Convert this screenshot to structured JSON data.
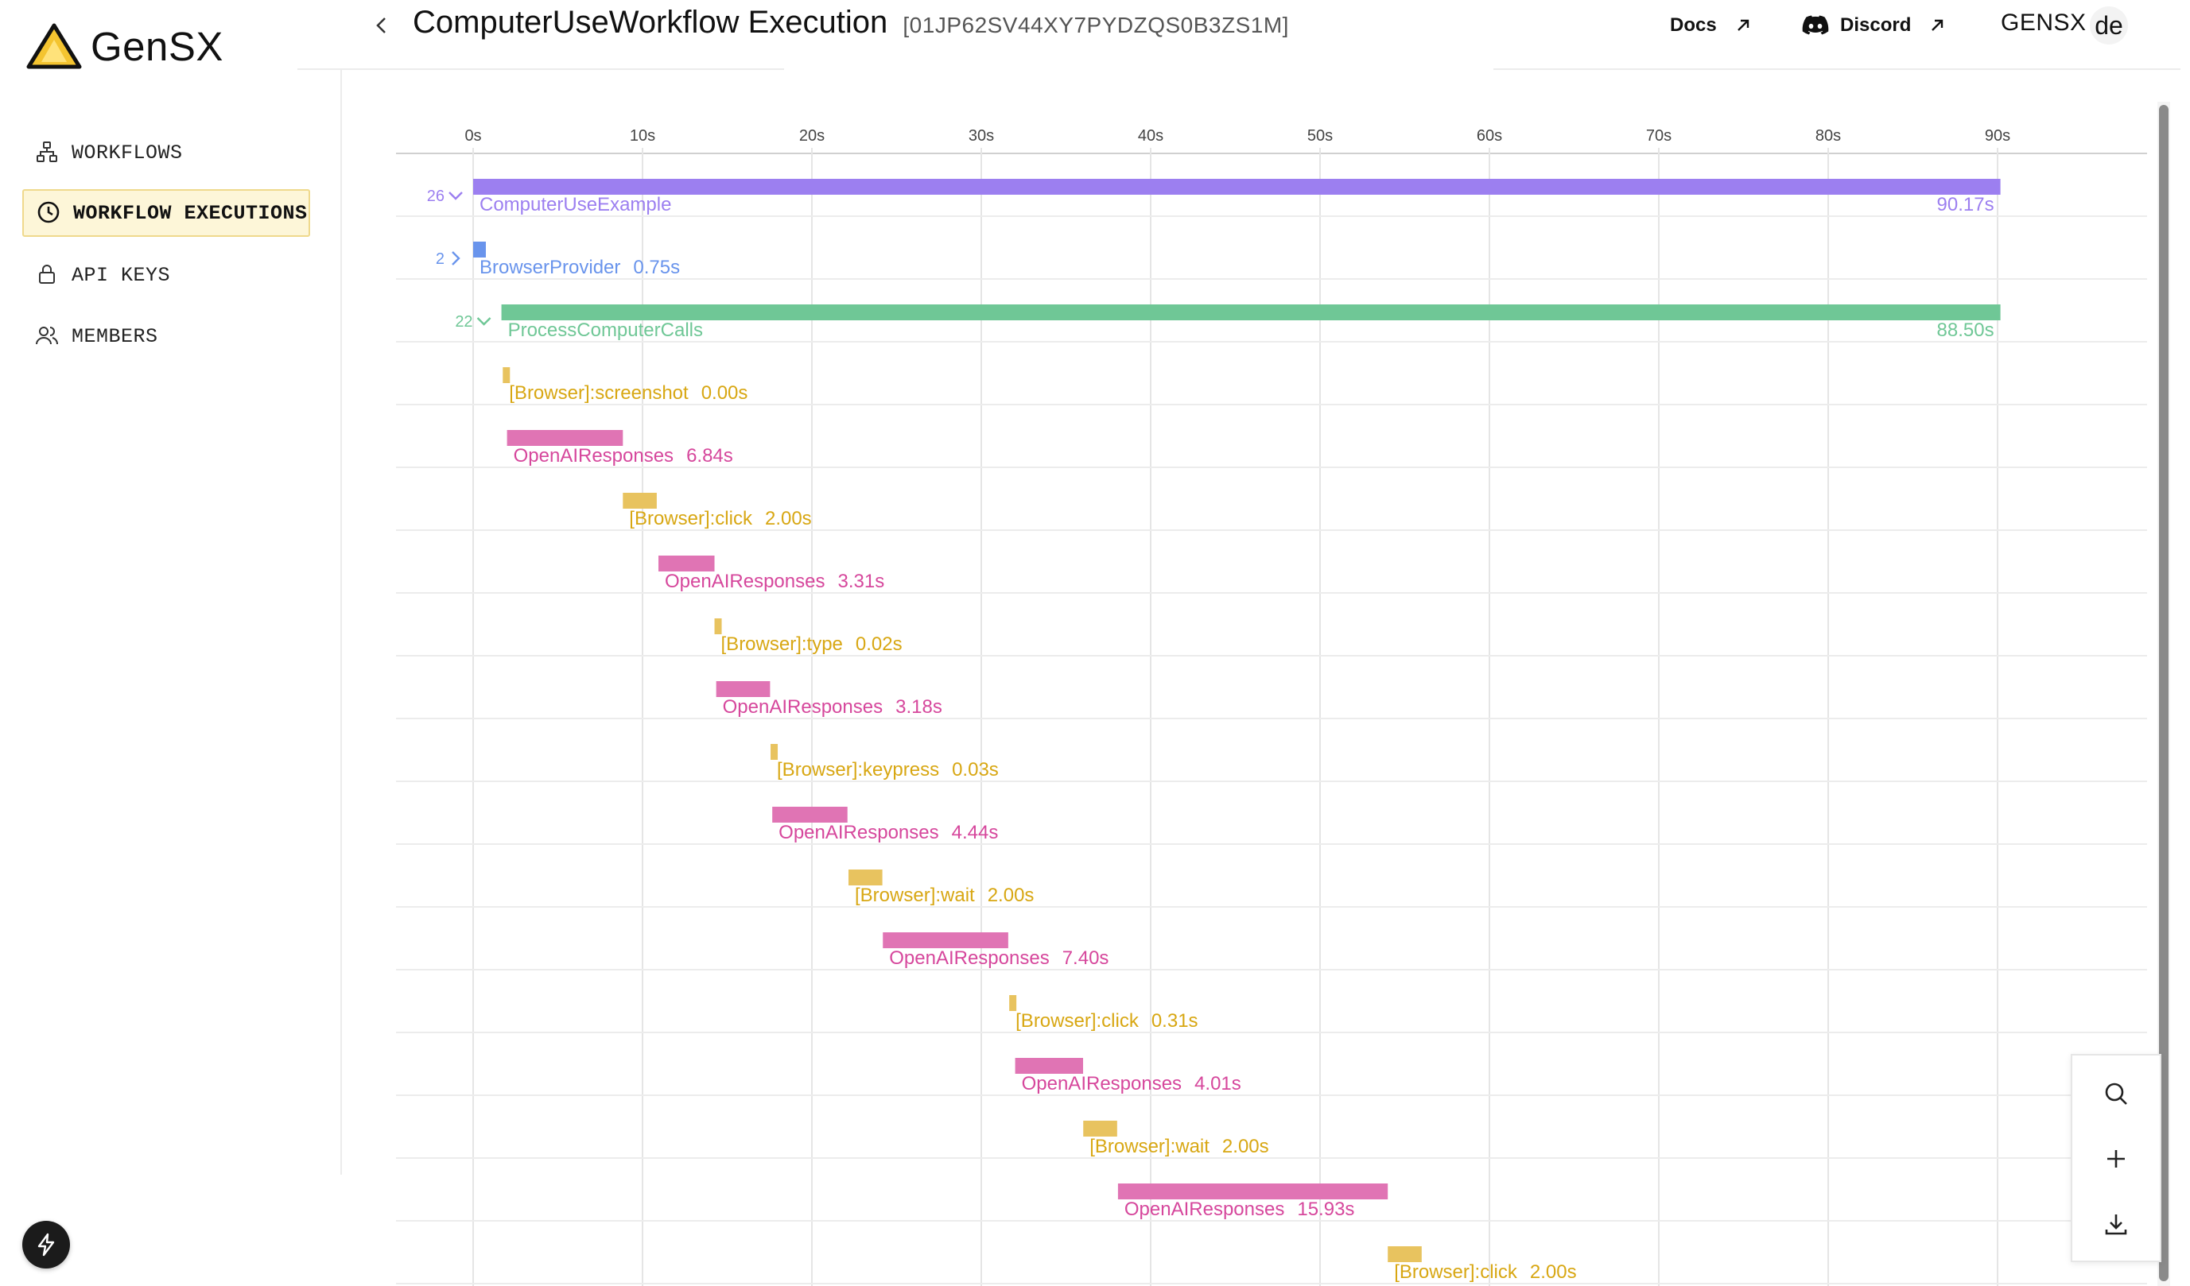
{
  "app": {
    "name": "GenSX"
  },
  "sidebar": {
    "items": [
      {
        "label": "WORKFLOWS",
        "icon": "workflow-icon",
        "active": false
      },
      {
        "label": "WORKFLOW EXECUTIONS",
        "icon": "clock-icon",
        "active": true
      },
      {
        "label": "API KEYS",
        "icon": "lock-icon",
        "active": false
      },
      {
        "label": "MEMBERS",
        "icon": "users-icon",
        "active": false
      }
    ],
    "bottom_icon": "bolt-icon"
  },
  "header": {
    "title": "ComputerUseWorkflow Execution",
    "execution_id": "[01JP62SV44XY7PYDZQS0B3ZS1M]",
    "docs_label": "Docs",
    "discord_label": "Discord",
    "org_name": "GENSX",
    "avatar_initials": "de"
  },
  "zoom_controls": [
    "search-icon",
    "plus-icon",
    "download-icon"
  ],
  "colors": {
    "workflow": "#9c7ff0",
    "provider": "#6994ec",
    "process": "#6fc796",
    "browser": "#e8c35f",
    "browser_text": "#d8a713",
    "openai": "#e074b4",
    "openai_text": "#d6479c",
    "grid": "#e5e5e5"
  },
  "chart_data": {
    "type": "gantt",
    "x_unit": "s",
    "xlim": [
      0,
      90.17
    ],
    "x_ticks": [
      "0s",
      "10s",
      "20s",
      "30s",
      "40s",
      "50s",
      "60s",
      "70s",
      "80s",
      "90s"
    ],
    "spans": [
      {
        "name": "ComputerUseExample",
        "start": 0,
        "duration": "90.17s",
        "kind": "workflow",
        "count": "26",
        "toggle": "down",
        "indent": 0
      },
      {
        "name": "BrowserProvider",
        "start": 0,
        "duration": "0.75s",
        "kind": "provider",
        "count": "2",
        "toggle": "right",
        "indent": 0
      },
      {
        "name": "ProcessComputerCalls",
        "start": 1.67,
        "duration": "88.50s",
        "kind": "process",
        "count": "22",
        "toggle": "down",
        "indent": 1
      },
      {
        "name": "[Browser]:screenshot",
        "start": 1.75,
        "duration": "0.00s",
        "kind": "browser",
        "indent": 1
      },
      {
        "name": "OpenAIResponses",
        "start": 2.0,
        "duration": "6.84s",
        "kind": "openai",
        "indent": 1
      },
      {
        "name": "[Browser]:click",
        "start": 8.84,
        "duration": "2.00s",
        "kind": "browser",
        "indent": 1
      },
      {
        "name": "OpenAIResponses",
        "start": 10.94,
        "duration": "3.31s",
        "kind": "openai",
        "indent": 1
      },
      {
        "name": "[Browser]:type",
        "start": 14.25,
        "duration": "0.02s",
        "kind": "browser",
        "indent": 1
      },
      {
        "name": "OpenAIResponses",
        "start": 14.35,
        "duration": "3.18s",
        "kind": "openai",
        "indent": 1
      },
      {
        "name": "[Browser]:keypress",
        "start": 17.56,
        "duration": "0.03s",
        "kind": "browser",
        "indent": 1
      },
      {
        "name": "OpenAIResponses",
        "start": 17.66,
        "duration": "4.44s",
        "kind": "openai",
        "indent": 1
      },
      {
        "name": "[Browser]:wait",
        "start": 22.16,
        "duration": "2.00s",
        "kind": "browser",
        "indent": 1
      },
      {
        "name": "OpenAIResponses",
        "start": 24.19,
        "duration": "7.40s",
        "kind": "openai",
        "indent": 1
      },
      {
        "name": "[Browser]:click",
        "start": 31.65,
        "duration": "0.31s",
        "kind": "browser",
        "indent": 1
      },
      {
        "name": "OpenAIResponses",
        "start": 32.0,
        "duration": "4.01s",
        "kind": "openai",
        "indent": 1
      },
      {
        "name": "[Browser]:wait",
        "start": 36.02,
        "duration": "2.00s",
        "kind": "browser",
        "indent": 1
      },
      {
        "name": "OpenAIResponses",
        "start": 38.07,
        "duration": "15.93s",
        "kind": "openai",
        "indent": 1
      },
      {
        "name": "[Browser]:click",
        "start": 54.0,
        "duration": "2.00s",
        "kind": "browser",
        "indent": 1
      }
    ]
  }
}
